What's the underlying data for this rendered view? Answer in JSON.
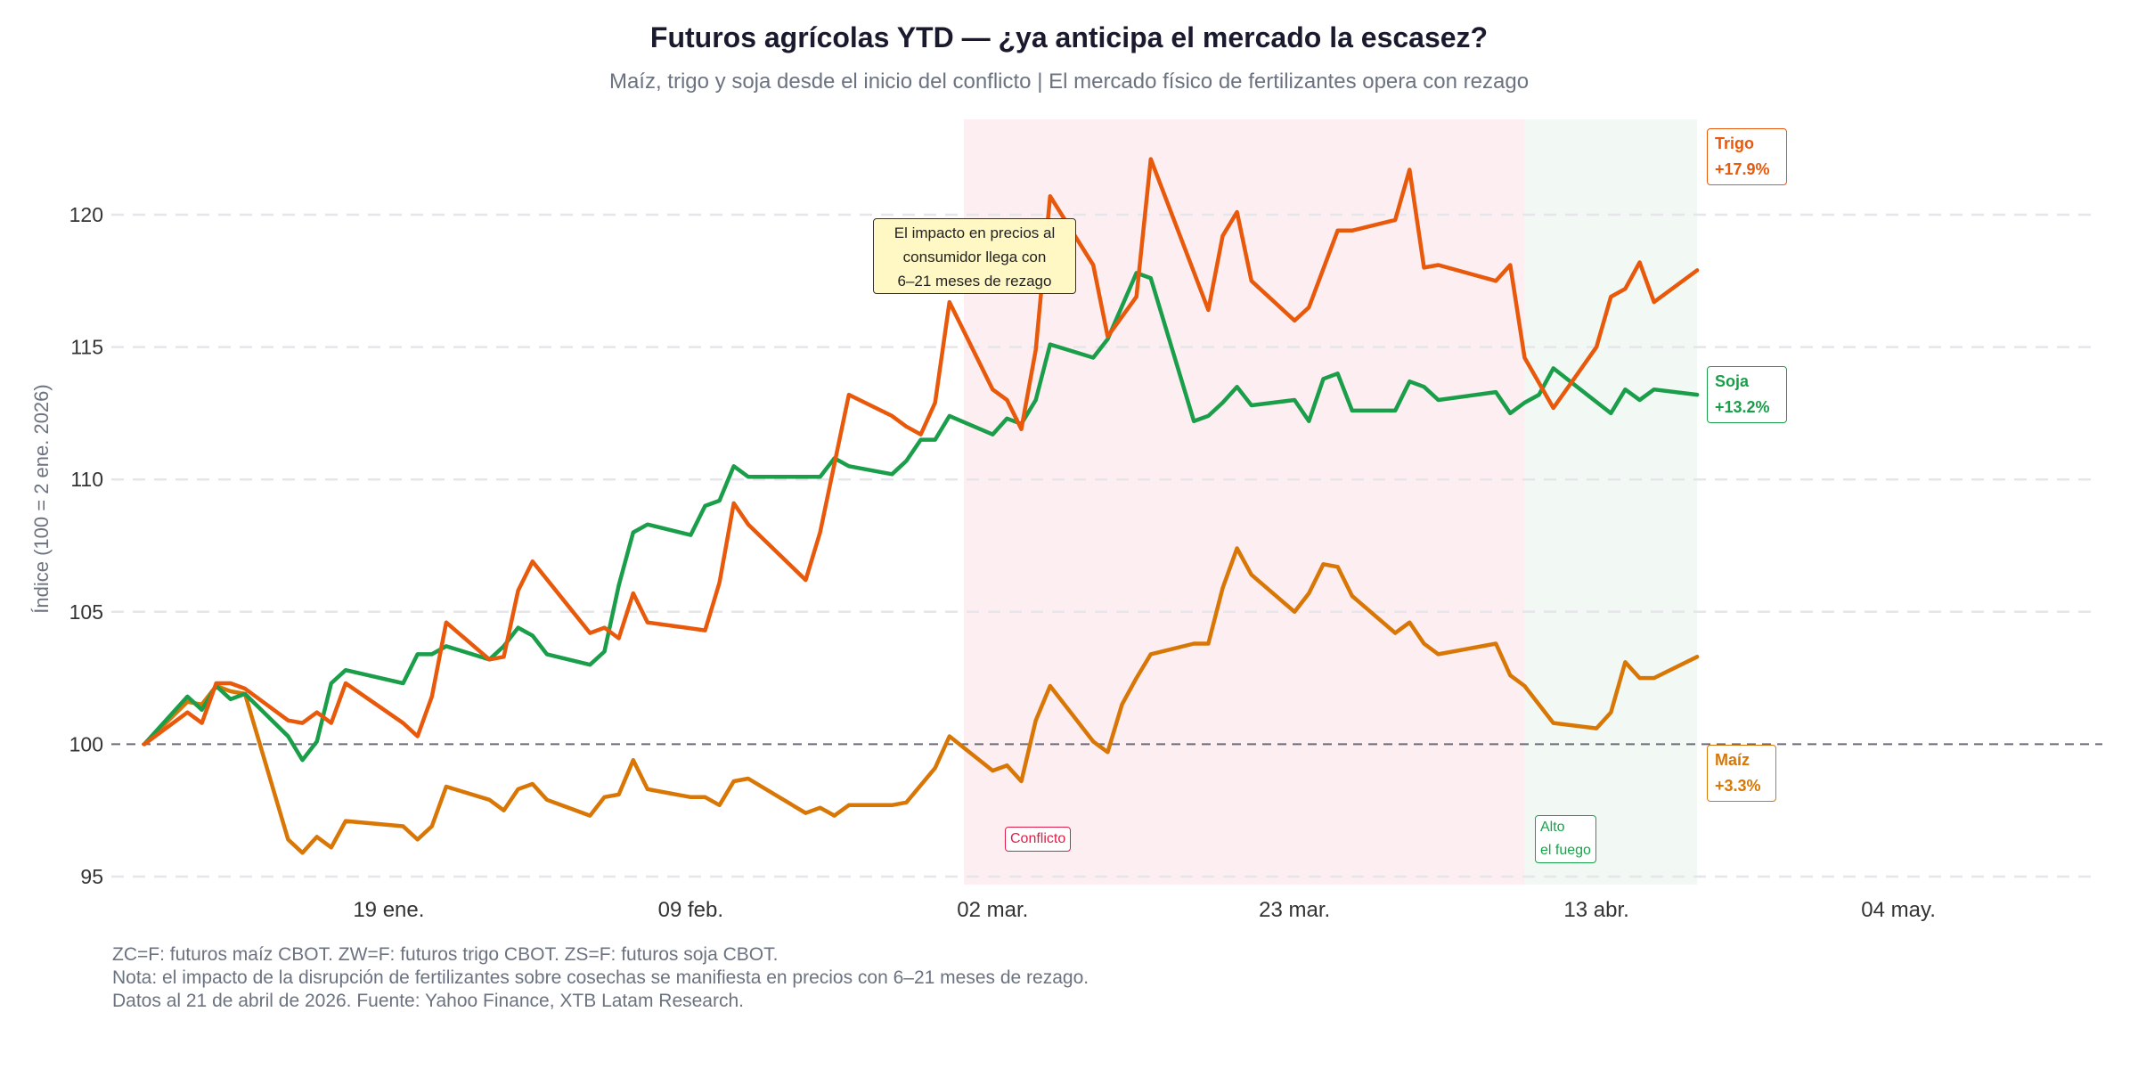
{
  "title": "Futuros agrícolas YTD — ¿ya anticipa el mercado la escasez?",
  "subtitle": "Maíz, trigo y soja desde el inicio del conflicto | El mercado físico de fertilizantes opera con rezago",
  "footnotes": [
    "ZC=F: futuros maíz CBOT. ZW=F: futuros trigo CBOT. ZS=F: futuros soja CBOT.",
    "Nota: el impacto de la disrupción de fertilizantes sobre cosechas se manifiesta en precios con 6–21 meses de rezago.",
    "Datos al 21 de abril de 2026. Fuente: Yahoo Finance, XTB Latam Research."
  ],
  "annotation": [
    "El impacto en precios al",
    "consumidor llega con",
    "6–21 meses de rezago"
  ],
  "end_labels": {
    "trigo": {
      "name": "Trigo",
      "change": "+17.9%"
    },
    "soja": {
      "name": "Soja",
      "change": "+13.2%"
    },
    "maiz": {
      "name": "Maíz",
      "change": "+3.3%"
    }
  },
  "events": {
    "conflict": {
      "label": "Conflicto",
      "start": "2026-02-28",
      "end": "2026-04-08",
      "color": "#fdeef1",
      "text_color": "#e11d48"
    },
    "ceasefire": {
      "label": [
        "Alto",
        "el fuego"
      ],
      "start": "2026-04-08",
      "end": "2026-04-20",
      "color": "#f2f8f3",
      "text_color": "#16a34a"
    }
  },
  "chart_data": {
    "type": "line",
    "title": "Futuros agrícolas YTD — ¿ya anticipa el mercado la escasez?",
    "ylabel": "Índice (100 = 2 ene. 2026)",
    "xlabel": "",
    "ylim": [
      94.7,
      123.6
    ],
    "xlim": [
      "2025-12-28",
      "2026-05-21"
    ],
    "yticks": [
      95,
      100,
      105,
      110,
      115,
      120
    ],
    "xticks": [
      {
        "date": "2026-01-19",
        "label": "19 ene."
      },
      {
        "date": "2026-02-09",
        "label": "09 feb."
      },
      {
        "date": "2026-03-02",
        "label": "02 mar."
      },
      {
        "date": "2026-03-23",
        "label": "23 mar."
      },
      {
        "date": "2026-04-13",
        "label": "13 abr."
      },
      {
        "date": "2026-05-04",
        "label": "04 may."
      }
    ],
    "grid": "horizontal dashed",
    "reference_line": 100,
    "series": [
      {
        "name": "Trigo",
        "color": "#e8590c",
        "points": [
          [
            "2026-01-02",
            100
          ],
          [
            "2026-01-05",
            101.2
          ],
          [
            "2026-01-06",
            100.8
          ],
          [
            "2026-01-07",
            102.3
          ],
          [
            "2026-01-08",
            102.3
          ],
          [
            "2026-01-09",
            102.1
          ],
          [
            "2026-01-12",
            100.9
          ],
          [
            "2026-01-13",
            100.8
          ],
          [
            "2026-01-14",
            101.2
          ],
          [
            "2026-01-15",
            100.8
          ],
          [
            "2026-01-16",
            102.3
          ],
          [
            "2026-01-20",
            100.8
          ],
          [
            "2026-01-21",
            100.3
          ],
          [
            "2026-01-22",
            101.8
          ],
          [
            "2026-01-23",
            104.6
          ],
          [
            "2026-01-26",
            103.2
          ],
          [
            "2026-01-27",
            103.3
          ],
          [
            "2026-01-28",
            105.8
          ],
          [
            "2026-01-29",
            106.9
          ],
          [
            "2026-02-02",
            104.2
          ],
          [
            "2026-02-03",
            104.4
          ],
          [
            "2026-02-04",
            104.0
          ],
          [
            "2026-02-05",
            105.7
          ],
          [
            "2026-02-06",
            104.6
          ],
          [
            "2026-02-10",
            104.3
          ],
          [
            "2026-02-11",
            106.1
          ],
          [
            "2026-02-12",
            109.1
          ],
          [
            "2026-02-13",
            108.3
          ],
          [
            "2026-02-17",
            106.2
          ],
          [
            "2026-02-18",
            108.0
          ],
          [
            "2026-02-20",
            113.2
          ],
          [
            "2026-02-23",
            112.4
          ],
          [
            "2026-02-24",
            112.0
          ],
          [
            "2026-02-25",
            111.7
          ],
          [
            "2026-02-26",
            112.9
          ],
          [
            "2026-02-27",
            116.7
          ],
          [
            "2026-03-02",
            113.4
          ],
          [
            "2026-03-03",
            113.0
          ],
          [
            "2026-03-04",
            111.9
          ],
          [
            "2026-03-05",
            114.9
          ],
          [
            "2026-03-06",
            120.7
          ],
          [
            "2026-03-09",
            118.1
          ],
          [
            "2026-03-10",
            115.4
          ],
          [
            "2026-03-12",
            116.9
          ],
          [
            "2026-03-13",
            122.1
          ],
          [
            "2026-03-17",
            116.4
          ],
          [
            "2026-03-18",
            119.2
          ],
          [
            "2026-03-19",
            120.1
          ],
          [
            "2026-03-20",
            117.5
          ],
          [
            "2026-03-23",
            116.0
          ],
          [
            "2026-03-24",
            116.5
          ],
          [
            "2026-03-26",
            119.4
          ],
          [
            "2026-03-27",
            119.4
          ],
          [
            "2026-03-30",
            119.8
          ],
          [
            "2026-03-31",
            121.7
          ],
          [
            "2026-04-01",
            118.0
          ],
          [
            "2026-04-02",
            118.1
          ],
          [
            "2026-04-06",
            117.5
          ],
          [
            "2026-04-07",
            118.1
          ],
          [
            "2026-04-08",
            114.6
          ],
          [
            "2026-04-10",
            112.7
          ],
          [
            "2026-04-13",
            115.0
          ],
          [
            "2026-04-14",
            116.9
          ],
          [
            "2026-04-15",
            117.2
          ],
          [
            "2026-04-16",
            118.2
          ],
          [
            "2026-04-17",
            116.7
          ],
          [
            "2026-04-20",
            117.9
          ]
        ]
      },
      {
        "name": "Soja",
        "color": "#1a9e4a",
        "points": [
          [
            "2026-01-02",
            100
          ],
          [
            "2026-01-05",
            101.8
          ],
          [
            "2026-01-06",
            101.3
          ],
          [
            "2026-01-07",
            102.2
          ],
          [
            "2026-01-08",
            101.7
          ],
          [
            "2026-01-09",
            101.9
          ],
          [
            "2026-01-12",
            100.3
          ],
          [
            "2026-01-13",
            99.4
          ],
          [
            "2026-01-14",
            100.1
          ],
          [
            "2026-01-15",
            102.3
          ],
          [
            "2026-01-16",
            102.8
          ],
          [
            "2026-01-20",
            102.3
          ],
          [
            "2026-01-21",
            103.4
          ],
          [
            "2026-01-22",
            103.4
          ],
          [
            "2026-01-23",
            103.7
          ],
          [
            "2026-01-26",
            103.2
          ],
          [
            "2026-01-27",
            103.7
          ],
          [
            "2026-01-28",
            104.4
          ],
          [
            "2026-01-29",
            104.1
          ],
          [
            "2026-01-30",
            103.4
          ],
          [
            "2026-02-02",
            103.0
          ],
          [
            "2026-02-03",
            103.5
          ],
          [
            "2026-02-04",
            106.0
          ],
          [
            "2026-02-05",
            108.0
          ],
          [
            "2026-02-06",
            108.3
          ],
          [
            "2026-02-09",
            107.9
          ],
          [
            "2026-02-10",
            109.0
          ],
          [
            "2026-02-11",
            109.2
          ],
          [
            "2026-02-12",
            110.5
          ],
          [
            "2026-02-13",
            110.1
          ],
          [
            "2026-02-17",
            110.1
          ],
          [
            "2026-02-18",
            110.1
          ],
          [
            "2026-02-19",
            110.8
          ],
          [
            "2026-02-20",
            110.5
          ],
          [
            "2026-02-23",
            110.2
          ],
          [
            "2026-02-24",
            110.7
          ],
          [
            "2026-02-25",
            111.5
          ],
          [
            "2026-02-26",
            111.5
          ],
          [
            "2026-02-27",
            112.4
          ],
          [
            "2026-03-02",
            111.7
          ],
          [
            "2026-03-03",
            112.3
          ],
          [
            "2026-03-04",
            112.1
          ],
          [
            "2026-03-05",
            113.0
          ],
          [
            "2026-03-06",
            115.1
          ],
          [
            "2026-03-09",
            114.6
          ],
          [
            "2026-03-10",
            115.3
          ],
          [
            "2026-03-12",
            117.8
          ],
          [
            "2026-03-13",
            117.6
          ],
          [
            "2026-03-16",
            112.2
          ],
          [
            "2026-03-17",
            112.4
          ],
          [
            "2026-03-18",
            112.9
          ],
          [
            "2026-03-19",
            113.5
          ],
          [
            "2026-03-20",
            112.8
          ],
          [
            "2026-03-23",
            113.0
          ],
          [
            "2026-03-24",
            112.2
          ],
          [
            "2026-03-25",
            113.8
          ],
          [
            "2026-03-26",
            114.0
          ],
          [
            "2026-03-27",
            112.6
          ],
          [
            "2026-03-30",
            112.6
          ],
          [
            "2026-03-31",
            113.7
          ],
          [
            "2026-04-01",
            113.5
          ],
          [
            "2026-04-02",
            113.0
          ],
          [
            "2026-04-06",
            113.3
          ],
          [
            "2026-04-07",
            112.5
          ],
          [
            "2026-04-08",
            112.9
          ],
          [
            "2026-04-09",
            113.2
          ],
          [
            "2026-04-10",
            114.2
          ],
          [
            "2026-04-14",
            112.5
          ],
          [
            "2026-04-15",
            113.4
          ],
          [
            "2026-04-16",
            113.0
          ],
          [
            "2026-04-17",
            113.4
          ],
          [
            "2026-04-20",
            113.2
          ]
        ]
      },
      {
        "name": "Maíz",
        "color": "#d97706",
        "points": [
          [
            "2026-01-02",
            100
          ],
          [
            "2026-01-05",
            101.6
          ],
          [
            "2026-01-06",
            101.5
          ],
          [
            "2026-01-07",
            102.2
          ],
          [
            "2026-01-08",
            102.0
          ],
          [
            "2026-01-09",
            101.9
          ],
          [
            "2026-01-12",
            96.4
          ],
          [
            "2026-01-13",
            95.9
          ],
          [
            "2026-01-14",
            96.5
          ],
          [
            "2026-01-15",
            96.1
          ],
          [
            "2026-01-16",
            97.1
          ],
          [
            "2026-01-20",
            96.9
          ],
          [
            "2026-01-21",
            96.4
          ],
          [
            "2026-01-22",
            96.9
          ],
          [
            "2026-01-23",
            98.4
          ],
          [
            "2026-01-26",
            97.9
          ],
          [
            "2026-01-27",
            97.5
          ],
          [
            "2026-01-28",
            98.3
          ],
          [
            "2026-01-29",
            98.5
          ],
          [
            "2026-01-30",
            97.9
          ],
          [
            "2026-02-02",
            97.3
          ],
          [
            "2026-02-03",
            98.0
          ],
          [
            "2026-02-04",
            98.1
          ],
          [
            "2026-02-05",
            99.4
          ],
          [
            "2026-02-06",
            98.3
          ],
          [
            "2026-02-09",
            98.0
          ],
          [
            "2026-02-10",
            98.0
          ],
          [
            "2026-02-11",
            97.7
          ],
          [
            "2026-02-12",
            98.6
          ],
          [
            "2026-02-13",
            98.7
          ],
          [
            "2026-02-17",
            97.4
          ],
          [
            "2026-02-18",
            97.6
          ],
          [
            "2026-02-19",
            97.3
          ],
          [
            "2026-02-20",
            97.7
          ],
          [
            "2026-02-23",
            97.7
          ],
          [
            "2026-02-24",
            97.8
          ],
          [
            "2026-02-26",
            99.1
          ],
          [
            "2026-02-27",
            100.3
          ],
          [
            "2026-03-02",
            99.0
          ],
          [
            "2026-03-03",
            99.2
          ],
          [
            "2026-03-04",
            98.6
          ],
          [
            "2026-03-05",
            100.9
          ],
          [
            "2026-03-06",
            102.2
          ],
          [
            "2026-03-09",
            100.1
          ],
          [
            "2026-03-10",
            99.7
          ],
          [
            "2026-03-11",
            101.5
          ],
          [
            "2026-03-12",
            102.5
          ],
          [
            "2026-03-13",
            103.4
          ],
          [
            "2026-03-16",
            103.8
          ],
          [
            "2026-03-17",
            103.8
          ],
          [
            "2026-03-18",
            105.9
          ],
          [
            "2026-03-19",
            107.4
          ],
          [
            "2026-03-20",
            106.4
          ],
          [
            "2026-03-23",
            105.0
          ],
          [
            "2026-03-24",
            105.7
          ],
          [
            "2026-03-25",
            106.8
          ],
          [
            "2026-03-26",
            106.7
          ],
          [
            "2026-03-27",
            105.6
          ],
          [
            "2026-03-30",
            104.2
          ],
          [
            "2026-03-31",
            104.6
          ],
          [
            "2026-04-01",
            103.8
          ],
          [
            "2026-04-02",
            103.4
          ],
          [
            "2026-04-06",
            103.8
          ],
          [
            "2026-04-07",
            102.6
          ],
          [
            "2026-04-08",
            102.2
          ],
          [
            "2026-04-10",
            100.8
          ],
          [
            "2026-04-13",
            100.6
          ],
          [
            "2026-04-14",
            101.2
          ],
          [
            "2026-04-15",
            103.1
          ],
          [
            "2026-04-16",
            102.5
          ],
          [
            "2026-04-17",
            102.5
          ],
          [
            "2026-04-20",
            103.3
          ]
        ]
      }
    ]
  }
}
